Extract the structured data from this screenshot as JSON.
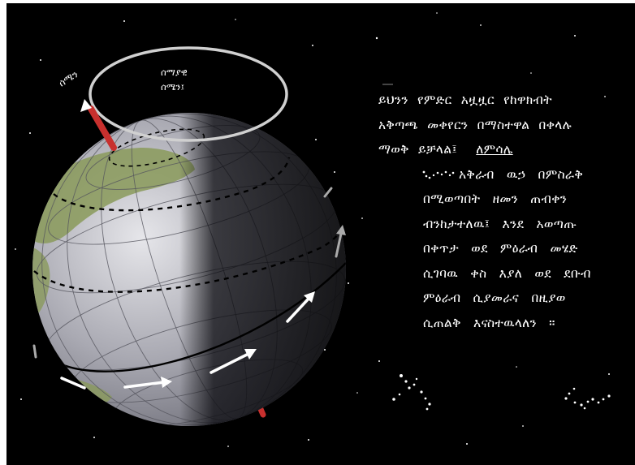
{
  "labels": {
    "north": "ሰሜን",
    "north_star_line1": "ሰማያዊ",
    "north_star_line2": "ሰሜን፤"
  },
  "paragraph": {
    "line1": "ይህንን  የምድር  አዟዟር  የከዋክብት",
    "line2": "አቅጣጫ  መቀየርን  በማስተዋል  በቀላሉ",
    "line3_text": "ማወቅ  ይቻላል፤",
    "line3_example": "ለምሳሌ",
    "line4": "አቅራብ  ዉኃ  በምስራቅ",
    "line5": "በሚወጣበት   ዘመን   ጠብቀን",
    "line6": "ብንከታተለዉ፤   እንደ  አወጣጡ",
    "line7": "በቀጥታ  ወደ  ምዕራብ   መሄድ",
    "line8": "ሲገባዉ  ቀስ  እያለ  ወደ  ደቡብ",
    "line9": "ምዕራብ    ሲያመራና    በዚያወ",
    "line10": "ሲጠልቅ  እናስተዉላለን ።"
  },
  "colors": {
    "background": "#000000",
    "axis": "#c8302e",
    "ring": "#d0d0d0",
    "text": "#ffffff",
    "land": "#8a9a5b"
  }
}
